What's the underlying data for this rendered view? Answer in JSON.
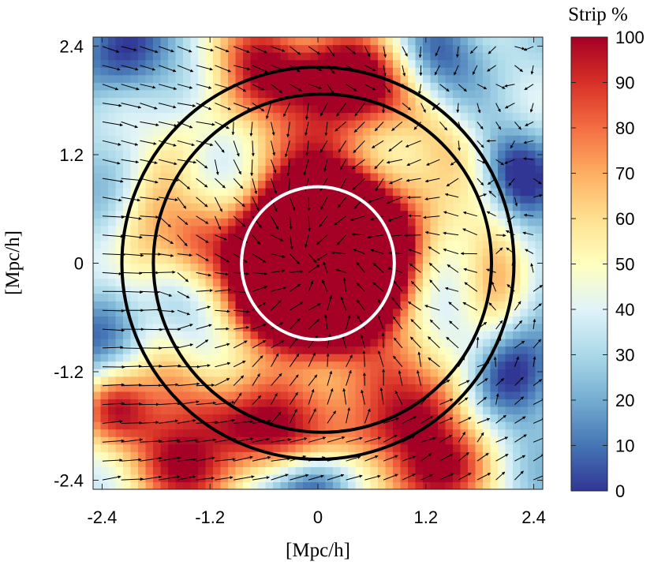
{
  "chart_data": {
    "type": "heatmap",
    "title": "",
    "xlabel": "[Mpc/h]",
    "ylabel": "[Mpc/h]",
    "xlim": [
      -2.5,
      2.5
    ],
    "ylim": [
      -2.5,
      2.5
    ],
    "x_ticks": [
      -2.4,
      -1.2,
      0,
      1.2,
      2.4
    ],
    "y_ticks": [
      -2.4,
      -1.2,
      0,
      1.2,
      2.4
    ],
    "x_tick_labels": [
      "-2.4",
      "-1.2",
      "0",
      "1.2",
      "2.4"
    ],
    "y_tick_labels": [
      "-2.4",
      "-1.2",
      "0",
      "1.2",
      "2.4"
    ],
    "colorbar": {
      "title": "Strip %",
      "range": [
        0,
        100
      ],
      "ticks": [
        0,
        10,
        20,
        30,
        40,
        50,
        60,
        70,
        80,
        90,
        100
      ],
      "tick_labels": [
        "0",
        "10",
        "20",
        "30",
        "40",
        "50",
        "60",
        "70",
        "80",
        "90",
        "100"
      ],
      "colormap": [
        "#313695",
        "#4575b4",
        "#74add1",
        "#abd9e9",
        "#e0f3f8",
        "#ffffbf",
        "#fee090",
        "#fdae61",
        "#f46d43",
        "#d73027",
        "#a50026"
      ]
    },
    "circles": [
      {
        "cx": 0,
        "cy": 0,
        "r": 0.85,
        "color": "#ffffff"
      },
      {
        "cx": 0,
        "cy": 0,
        "r": 2.18,
        "color": "#000000"
      },
      {
        "cx": 0.05,
        "cy": 0,
        "r": 1.88,
        "color": "#000000"
      }
    ],
    "field_components": [
      {
        "type": "core",
        "cx": 0,
        "cy": 0,
        "r": 1.0,
        "amp": 100
      },
      {
        "type": "blob",
        "cx": -0.6,
        "cy": 2.3,
        "s": 0.35,
        "amp": 55
      },
      {
        "type": "blob",
        "cx": 0.3,
        "cy": 2.2,
        "s": 0.4,
        "amp": 60
      },
      {
        "type": "blob",
        "cx": 0.1,
        "cy": 1.2,
        "s": 0.5,
        "amp": 50
      },
      {
        "type": "blob",
        "cx": -1.3,
        "cy": 0.2,
        "s": 0.35,
        "amp": 40
      },
      {
        "type": "blob",
        "cx": 0.9,
        "cy": 0.3,
        "s": 0.45,
        "amp": 40
      },
      {
        "type": "blob",
        "cx": -0.6,
        "cy": -1.6,
        "s": 0.45,
        "amp": 50
      },
      {
        "type": "blob",
        "cx": 0.7,
        "cy": -1.4,
        "s": 0.45,
        "amp": 45
      },
      {
        "type": "blob",
        "cx": -1.6,
        "cy": -2.2,
        "s": 0.45,
        "amp": 65
      },
      {
        "type": "blob",
        "cx": 1.3,
        "cy": -2.3,
        "s": 0.45,
        "amp": 65
      },
      {
        "type": "blob",
        "cx": -2.3,
        "cy": -1.6,
        "s": 0.3,
        "amp": 55
      },
      {
        "type": "ring",
        "cx": 0,
        "cy": 0,
        "r": 2.0,
        "w": 0.25,
        "amp": 25
      },
      {
        "type": "blob",
        "cx": 2.2,
        "cy": 1.0,
        "s": 0.35,
        "amp": -35
      },
      {
        "type": "blob",
        "cx": -2.2,
        "cy": 2.3,
        "s": 0.35,
        "amp": -30
      },
      {
        "type": "blob",
        "cx": -2.3,
        "cy": -0.7,
        "s": 0.4,
        "amp": -28
      },
      {
        "type": "blob",
        "cx": 2.2,
        "cy": -1.2,
        "s": 0.4,
        "amp": -35
      },
      {
        "type": "blob",
        "cx": 0.0,
        "cy": -2.4,
        "s": 0.3,
        "amp": -30
      },
      {
        "type": "blob",
        "cx": 1.3,
        "cy": 2.4,
        "s": 0.3,
        "amp": -25
      }
    ],
    "field_base": 32,
    "vector_flow": {
      "inflow": 1.0,
      "swirl": 0.35,
      "noise": 0.6
    }
  }
}
